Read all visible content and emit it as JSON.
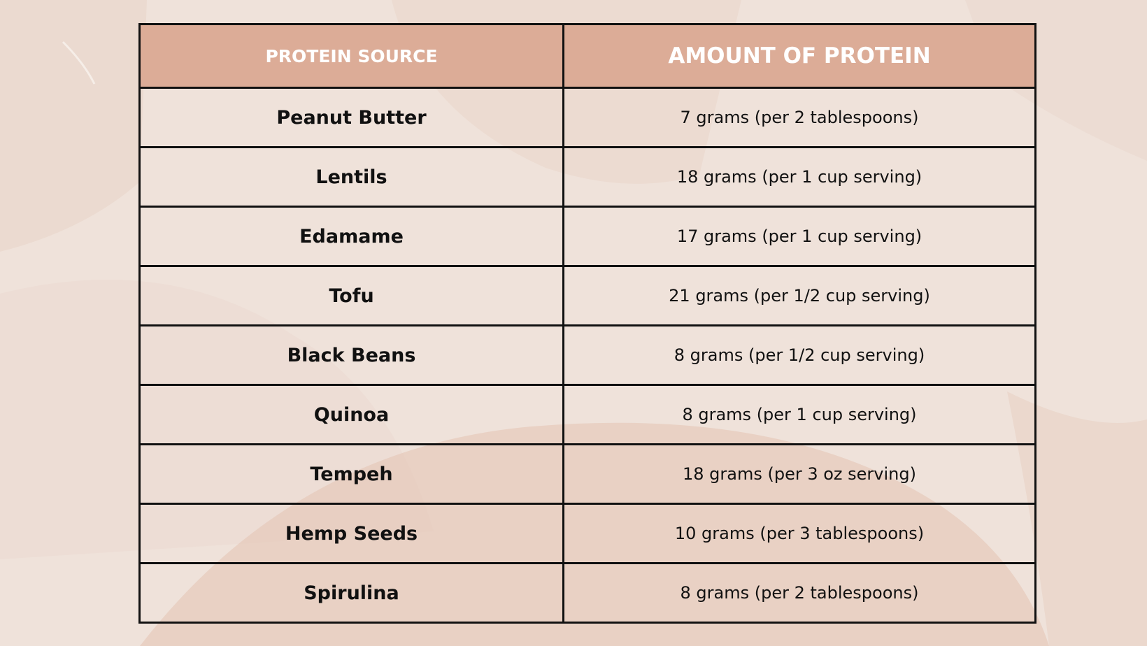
{
  "table": {
    "headers": {
      "source": "PROTEIN SOURCE",
      "amount": "AMOUNT OF PROTEIN"
    },
    "rows": [
      {
        "source": "Peanut Butter",
        "amount": "7 grams (per 2 tablespoons)"
      },
      {
        "source": "Lentils",
        "amount": "18 grams (per 1 cup serving)"
      },
      {
        "source": "Edamame",
        "amount": "17 grams (per 1 cup serving)"
      },
      {
        "source": "Tofu",
        "amount": "21 grams (per 1/2 cup serving)"
      },
      {
        "source": "Black Beans",
        "amount": "8 grams (per 1/2 cup serving)"
      },
      {
        "source": "Quinoa",
        "amount": "8 grams (per 1 cup serving)"
      },
      {
        "source": "Tempeh",
        "amount": "18 grams (per 3 oz serving)"
      },
      {
        "source": "Hemp Seeds",
        "amount": "10 grams (per 3 tablespoons)"
      },
      {
        "source": "Spirulina",
        "amount": "8 grams (per 2 tablespoons)"
      }
    ]
  },
  "colors": {
    "background": "#efe2da",
    "header_fill": "#dcac97",
    "header_text": "#ffffff",
    "border": "#111111",
    "body_text": "#111111"
  }
}
